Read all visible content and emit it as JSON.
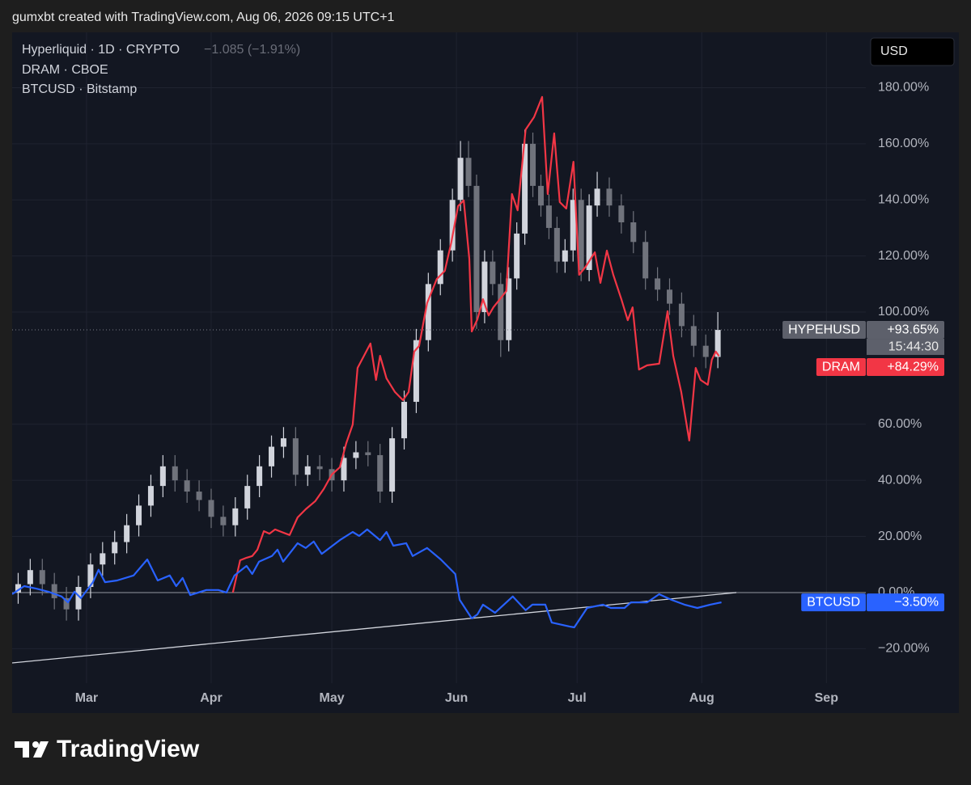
{
  "page": {
    "caption": "gumxbt created with TradingView.com, Aug 06, 2026 09:15 UTC+1",
    "brand": "TradingView"
  },
  "chart_data": {
    "type": "candlestick",
    "currency": "USD",
    "legend": [
      {
        "text": "Hyperliquid · 1D · CRYPTO",
        "change": "−1.085 (−1.91%)"
      },
      {
        "text": "DRAM · CBOE"
      },
      {
        "text": "BTCUSD · Bitstamp"
      }
    ],
    "xlim": [
      -18.5,
      193.8
    ],
    "xticks": [
      {
        "value": 0,
        "label": "Mar"
      },
      {
        "value": 31,
        "label": "Apr"
      },
      {
        "value": 61,
        "label": "May"
      },
      {
        "value": 92,
        "label": "Jun"
      },
      {
        "value": 122,
        "label": "Jul"
      },
      {
        "value": 153,
        "label": "Aug"
      },
      {
        "value": 184,
        "label": "Sep"
      }
    ],
    "ylim": [
      -32.3,
      198.3
    ],
    "yticks": [
      {
        "value": -20,
        "label": "−20.00%"
      },
      {
        "value": 0,
        "label": "0.00%"
      },
      {
        "value": 20,
        "label": "20.00%"
      },
      {
        "value": 40,
        "label": "40.00%"
      },
      {
        "value": 60,
        "label": "60.00%"
      },
      {
        "value": 100,
        "label": "100.00%"
      },
      {
        "value": 120,
        "label": "120.00%"
      },
      {
        "value": 140,
        "label": "140.00%"
      },
      {
        "value": 160,
        "label": "160.00%"
      },
      {
        "value": 180,
        "label": "180.00%"
      }
    ],
    "grid": true,
    "baseline": 0,
    "trend_line": {
      "x": [
        -18.5,
        161.6
      ],
      "values": [
        -25.1,
        0
      ],
      "color": "#d1d4dc"
    },
    "series": [
      {
        "name": "HYPEHUSD",
        "type": "candlestick",
        "color_up": "#d1d4dc",
        "color_down": "#70737c",
        "tag_color": "#5d606b",
        "x": [
          -17,
          -14,
          -11,
          -8,
          -5,
          -2,
          1,
          4,
          7,
          10,
          13,
          16,
          19,
          22,
          25,
          28,
          31,
          34,
          37,
          40,
          43,
          46,
          49,
          52,
          55,
          58,
          61,
          64,
          67,
          70,
          73,
          76,
          79,
          82,
          85,
          88,
          91,
          93,
          95,
          97,
          99,
          101,
          103,
          105,
          107,
          109,
          111,
          113,
          115,
          117,
          119,
          121,
          123,
          125,
          127,
          130,
          133,
          136,
          139,
          142,
          145,
          148,
          151,
          154,
          157
        ],
        "open": [
          0,
          3,
          8,
          3,
          -2,
          -6,
          2,
          10,
          14,
          18,
          24,
          31,
          38,
          45,
          40,
          36,
          33,
          27,
          24,
          30,
          38,
          45,
          52,
          55,
          42,
          45,
          44,
          40,
          48,
          50,
          49,
          36,
          55,
          68,
          90,
          110,
          122,
          140,
          155,
          145,
          100,
          118,
          110,
          90,
          112,
          128,
          160,
          145,
          138,
          130,
          118,
          122,
          140,
          115,
          138,
          144,
          138,
          132,
          125,
          112,
          108,
          103,
          95,
          88,
          84
        ],
        "high": [
          7,
          12,
          12,
          7,
          2,
          6,
          14,
          18,
          22,
          28,
          35,
          42,
          49,
          49,
          44,
          40,
          37,
          31,
          34,
          42,
          49,
          56,
          59,
          59,
          49,
          49,
          48,
          52,
          54,
          54,
          53,
          59,
          72,
          94,
          114,
          126,
          144,
          161,
          161,
          149,
          122,
          122,
          114,
          116,
          132,
          165,
          164,
          149,
          142,
          134,
          126,
          144,
          144,
          142,
          150,
          148,
          142,
          136,
          129,
          116,
          112,
          107,
          99,
          92,
          100
        ],
        "low": [
          -4,
          -1,
          -1,
          -6,
          -10,
          -10,
          -2,
          6,
          10,
          14,
          20,
          27,
          34,
          36,
          32,
          29,
          23,
          20,
          20,
          26,
          34,
          41,
          48,
          38,
          38,
          40,
          36,
          36,
          44,
          45,
          32,
          32,
          51,
          64,
          86,
          106,
          118,
          136,
          141,
          94,
          96,
          106,
          84,
          86,
          108,
          124,
          141,
          134,
          126,
          114,
          114,
          118,
          111,
          111,
          134,
          134,
          128,
          121,
          108,
          104,
          99,
          91,
          84,
          80,
          80
        ],
        "close": [
          3,
          8,
          3,
          -2,
          -6,
          2,
          10,
          14,
          18,
          24,
          31,
          38,
          45,
          40,
          36,
          33,
          27,
          24,
          30,
          38,
          45,
          52,
          55,
          42,
          45,
          44,
          40,
          48,
          50,
          49,
          36,
          55,
          68,
          90,
          110,
          122,
          140,
          155,
          145,
          100,
          118,
          110,
          90,
          112,
          128,
          160,
          145,
          138,
          130,
          118,
          122,
          140,
          115,
          138,
          144,
          138,
          132,
          125,
          112,
          108,
          103,
          95,
          88,
          84,
          93.65
        ],
        "last_label": "+93.65%",
        "countdown": "15:44:30"
      },
      {
        "name": "DRAM",
        "type": "line",
        "color": "#f23645",
        "x": [
          36.4,
          38.2,
          39.8,
          41.2,
          42.5,
          44.1,
          45.5,
          46.9,
          48.5,
          50.5,
          52.5,
          54.5,
          56.9,
          59.0,
          61.0,
          63.0,
          64.6,
          66.2,
          67.4,
          69.0,
          70.6,
          72.0,
          73.0,
          74.6,
          76.7,
          78.7,
          80.1,
          81.5,
          82.7,
          84.7,
          87.1,
          89.1,
          90.7,
          92.4,
          93.8,
          95.2,
          95.8,
          97.2,
          98.6,
          100.0,
          101.2,
          102.8,
          104.4,
          105.8,
          107.2,
          109.2,
          111.3,
          113.3,
          114.7,
          116.3,
          117.7,
          119.3,
          121.1,
          122.5,
          124.1,
          126.4,
          127.8,
          129.4,
          131.0,
          133.0,
          134.6,
          135.8,
          137.4,
          139.4,
          142.4,
          144.5,
          145.9,
          147.9,
          149.9,
          151.5,
          152.7,
          154.5,
          155.5,
          156.5,
          157.3
        ],
        "values": [
          0,
          11.5,
          12.4,
          13.0,
          15.3,
          21.9,
          21.0,
          22.5,
          21.6,
          20.5,
          26.8,
          29.7,
          32.6,
          36.9,
          42.1,
          44.7,
          53.3,
          59.9,
          80.1,
          84.4,
          88.8,
          75.8,
          84.4,
          76.4,
          71.5,
          68.6,
          71.5,
          85.9,
          87.9,
          103.2,
          111.8,
          114.7,
          124.8,
          137.8,
          139.8,
          119.0,
          93.1,
          97.4,
          104.6,
          98.8,
          101.7,
          104.6,
          107.5,
          142.1,
          136.3,
          165.1,
          169.5,
          176.7,
          142.1,
          163.7,
          139.2,
          136.9,
          153.6,
          113.3,
          116.1,
          121.3,
          110.4,
          121.9,
          113.3,
          104.6,
          97.1,
          101.7,
          79.5,
          81.0,
          81.6,
          100.3,
          84.4,
          71.5,
          54.2,
          80.1,
          75.8,
          74.1,
          83.0,
          85.9,
          84.29
        ],
        "last_label": "+84.29%"
      },
      {
        "name": "BTCUSD",
        "type": "line",
        "color": "#2962ff",
        "x": [
          -18.5,
          -15.5,
          -12.5,
          -9.5,
          -6.2,
          -4.6,
          -3.0,
          -1.4,
          1.6,
          3.0,
          4.6,
          7.6,
          11.7,
          15.1,
          17.7,
          20.7,
          22.3,
          23.9,
          25.8,
          29.8,
          32.8,
          34.8,
          36.8,
          39.8,
          41.2,
          42.9,
          46.1,
          47.5,
          48.9,
          52.5,
          54.5,
          56.5,
          58.5,
          63.0,
          66.2,
          67.8,
          69.8,
          73.0,
          74.6,
          76.3,
          79.5,
          81.1,
          84.7,
          88.1,
          91.7,
          92.8,
          95.8,
          97.2,
          98.6,
          101.6,
          106.0,
          109.2,
          110.9,
          114.1,
          115.7,
          120.1,
          121.3,
          124.5,
          128.4,
          130.4,
          133.8,
          135.4,
          139.4,
          142.4,
          145.5,
          148.7,
          151.9,
          155.1,
          157.9
        ],
        "values": [
          -0.6,
          2.3,
          1.4,
          0.3,
          -1.4,
          -3.5,
          0.3,
          -2.0,
          3.7,
          8.1,
          3.7,
          4.3,
          6.1,
          11.8,
          4.3,
          6.1,
          2.3,
          5.2,
          -0.9,
          0.9,
          0.9,
          0,
          6.1,
          9.5,
          6.6,
          11.0,
          13.0,
          15.3,
          11.0,
          17.6,
          15.9,
          18.2,
          13.8,
          18.7,
          21.6,
          20.2,
          22.5,
          18.7,
          21.6,
          16.7,
          17.6,
          13.0,
          15.9,
          11.8,
          6.6,
          -2.6,
          -9.2,
          -7.8,
          -4.3,
          -7.2,
          -1.4,
          -6.3,
          -4.3,
          -4.3,
          -10.7,
          -12.1,
          -12.4,
          -5.5,
          -4.3,
          -5.5,
          -5.5,
          -3.5,
          -3.5,
          -0.6,
          -2.6,
          -4.3,
          -5.5,
          -4.3,
          -3.5
        ],
        "last_label": "−3.50%"
      }
    ]
  }
}
